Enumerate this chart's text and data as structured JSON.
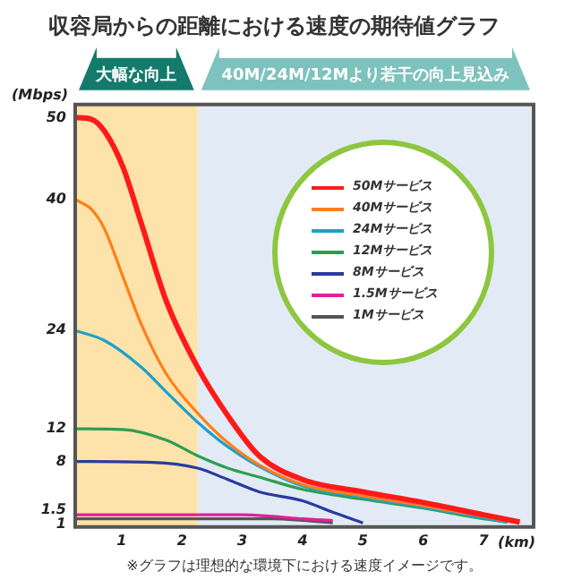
{
  "chart_data": {
    "type": "line",
    "title": "収容局からの距離における速度の期待値グラフ",
    "xlabel": "(km)",
    "ylabel": "(Mbps)",
    "xlim": [
      0.23,
      7.83
    ],
    "xticks": [
      1,
      2,
      3,
      4,
      5,
      6,
      7
    ],
    "ylim": [
      0,
      51.6
    ],
    "yticks": [
      1,
      1.5,
      8,
      12,
      24,
      40,
      50
    ],
    "legend": "top right",
    "marker": "none",
    "line_style": "solid",
    "bands": [
      {
        "axis": "x",
        "from": 0.23,
        "to": 2.26,
        "label": "大幅な向上",
        "color": "#fde3aa"
      },
      {
        "axis": "x",
        "from": 2.26,
        "to": 7.83,
        "label": "40M/24M/12Mより若干の向上見込み",
        "color": "#e2ebf5"
      }
    ],
    "annotations": [
      "※グラフは理想的な環境下における速度イメージです。"
    ],
    "series": [
      {
        "name": "50Mサービス",
        "color": "#ff1a1a",
        "x": [
          0.23,
          0.5,
          0.71,
          1.02,
          1.33,
          1.74,
          2.26,
          2.76,
          3.28,
          4,
          5,
          6,
          7,
          7.6
        ],
        "values": [
          50,
          49.8,
          48.4,
          44,
          37,
          27.6,
          19.5,
          13.6,
          8.7,
          5.8,
          4.3,
          3,
          1.5,
          0.6
        ]
      },
      {
        "name": "40Mサービス",
        "color": "#ff7f1a",
        "x": [
          0.23,
          0.5,
          0.71,
          1.02,
          1.33,
          1.74,
          2.26,
          2.76,
          3.28,
          4,
          5,
          6,
          7,
          7.5
        ],
        "values": [
          40,
          38.8,
          36.5,
          30.6,
          24.7,
          18.7,
          13.9,
          10.3,
          7.6,
          5.2,
          3.8,
          2.6,
          1.3,
          0.6
        ]
      },
      {
        "name": "24Mサービス",
        "color": "#1fa0c8",
        "x": [
          0.23,
          0.71,
          1.33,
          1.74,
          2.26,
          2.76,
          3.28,
          4,
          5,
          6,
          7,
          7.4
        ],
        "values": [
          24,
          22.8,
          19.5,
          16.5,
          12.8,
          9.8,
          7.4,
          5,
          3.6,
          2.4,
          1.1,
          0.6
        ]
      },
      {
        "name": "12Mサービス",
        "color": "#2e9e50",
        "x": [
          0.23,
          1.02,
          1.74,
          2.26,
          2.76,
          3.28,
          4,
          5,
          6,
          7,
          7.4
        ],
        "values": [
          12,
          11.9,
          10.6,
          8.7,
          7.2,
          6.1,
          4.6,
          3.4,
          2.3,
          1,
          0.6
        ]
      },
      {
        "name": "8Mサービス",
        "color": "#2a3aa0",
        "x": [
          0.23,
          1.51,
          2.26,
          2.76,
          3.28,
          4,
          4.5,
          5
        ],
        "values": [
          8,
          7.9,
          7.2,
          5.8,
          4.3,
          3.2,
          1.8,
          0.5
        ]
      },
      {
        "name": "1.5Mサービス",
        "color": "#e0209a",
        "x": [
          0.23,
          3,
          3.5,
          4,
          4.5
        ],
        "values": [
          1.5,
          1.5,
          1.3,
          1,
          0.8
        ]
      },
      {
        "name": "1Mサービス",
        "color": "#555555",
        "x": [
          0.23,
          3.5,
          4,
          4.5
        ],
        "values": [
          1,
          1,
          0.8,
          0.5
        ]
      }
    ]
  }
}
